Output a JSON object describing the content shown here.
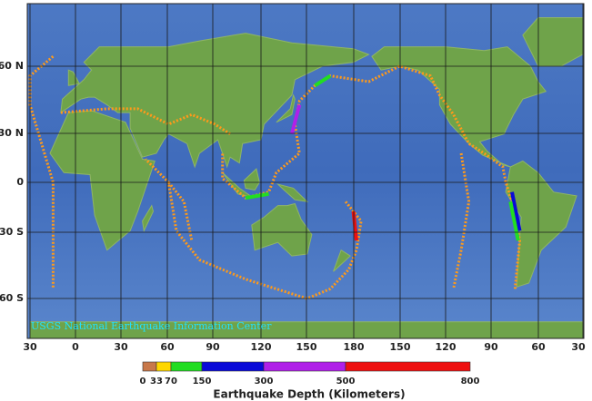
{
  "map": {
    "latitude_labels": [
      "60 N",
      "30 N",
      "0",
      "30 S",
      "60 S"
    ],
    "longitude_labels": [
      "30",
      "0",
      "30",
      "60",
      "90",
      "120",
      "150",
      "180",
      "150",
      "120",
      "90",
      "60",
      "30"
    ],
    "credit": "USGS National Earthquake Information Center",
    "legend": {
      "title": "Earthquake Depth (Kilometers)",
      "ticks": [
        0,
        33,
        70,
        150,
        300,
        500,
        800
      ],
      "colors": [
        "#c8784a",
        "#ffd700",
        "#22dd22",
        "#0a0ad8",
        "#b020e8",
        "#ee1010"
      ]
    }
  }
}
